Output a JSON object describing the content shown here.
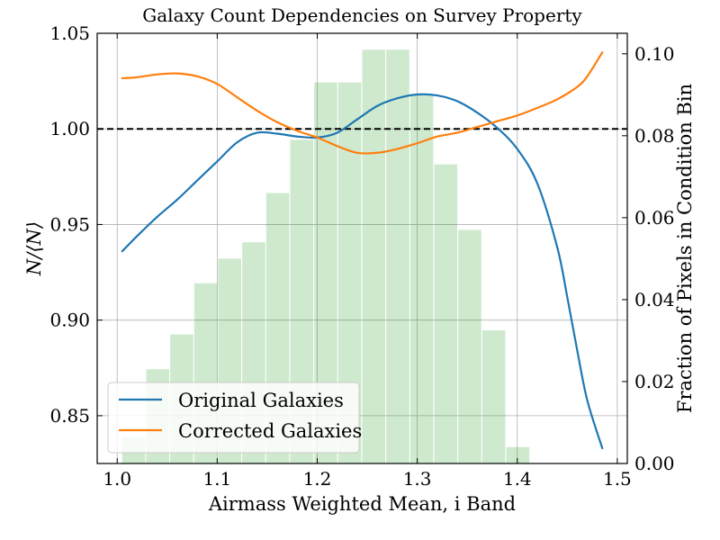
{
  "chart_data": {
    "type": "line",
    "title": "Galaxy Count Dependencies on Survey Property",
    "xlabel": "Airmass Weighted Mean, i Band",
    "ylabel": "N/⟨N⟩",
    "y2label": "Fraction of Pixels in Condition Bin",
    "xlim": [
      0.98,
      1.51
    ],
    "ylim": [
      0.825,
      1.05
    ],
    "y2lim": [
      0.0,
      0.105
    ],
    "xticks": [
      "1.0",
      "1.1",
      "1.2",
      "1.3",
      "1.4",
      "1.5"
    ],
    "yticks": [
      "0.85",
      "0.90",
      "0.95",
      "1.00",
      "1.05"
    ],
    "y2ticks": [
      "0.00",
      "0.02",
      "0.04",
      "0.06",
      "0.08",
      "0.10"
    ],
    "grid": true,
    "legend_position": "lower-left",
    "reference_line": {
      "y": 1.0,
      "style": "dashed",
      "color": "#000000"
    },
    "histogram": {
      "color": "#2ca02c",
      "bins": [
        {
          "x0": 1.005,
          "x1": 1.028,
          "value": 0.0065
        },
        {
          "x0": 1.029,
          "x1": 1.052,
          "value": 0.023
        },
        {
          "x0": 1.053,
          "x1": 1.076,
          "value": 0.0315
        },
        {
          "x0": 1.077,
          "x1": 1.1,
          "value": 0.044
        },
        {
          "x0": 1.101,
          "x1": 1.124,
          "value": 0.05
        },
        {
          "x0": 1.125,
          "x1": 1.148,
          "value": 0.054
        },
        {
          "x0": 1.149,
          "x1": 1.172,
          "value": 0.066
        },
        {
          "x0": 1.173,
          "x1": 1.196,
          "value": 0.079
        },
        {
          "x0": 1.197,
          "x1": 1.22,
          "value": 0.093
        },
        {
          "x0": 1.221,
          "x1": 1.244,
          "value": 0.093
        },
        {
          "x0": 1.245,
          "x1": 1.268,
          "value": 0.101
        },
        {
          "x0": 1.269,
          "x1": 1.292,
          "value": 0.101
        },
        {
          "x0": 1.293,
          "x1": 1.316,
          "value": 0.09
        },
        {
          "x0": 1.317,
          "x1": 1.34,
          "value": 0.073
        },
        {
          "x0": 1.341,
          "x1": 1.364,
          "value": 0.057
        },
        {
          "x0": 1.365,
          "x1": 1.388,
          "value": 0.0325
        },
        {
          "x0": 1.389,
          "x1": 1.412,
          "value": 0.004
        },
        {
          "x0": 1.413,
          "x1": 1.436,
          "value": 0.0
        },
        {
          "x0": 1.437,
          "x1": 1.46,
          "value": 0.0
        }
      ]
    },
    "series": [
      {
        "name": "Original Galaxies",
        "color": "#1f77b4",
        "x": [
          1.005,
          1.02,
          1.04,
          1.06,
          1.08,
          1.1,
          1.12,
          1.14,
          1.16,
          1.18,
          1.2,
          1.22,
          1.24,
          1.26,
          1.28,
          1.3,
          1.32,
          1.34,
          1.36,
          1.38,
          1.4,
          1.42,
          1.44,
          1.45,
          1.46,
          1.47,
          1.485
        ],
        "y": [
          0.936,
          0.944,
          0.954,
          0.963,
          0.973,
          0.983,
          0.993,
          0.998,
          0.9975,
          0.996,
          0.9955,
          0.998,
          1.005,
          1.012,
          1.016,
          1.018,
          1.0175,
          1.0145,
          1.0085,
          1.0005,
          0.9895,
          0.9715,
          0.938,
          0.912,
          0.884,
          0.858,
          0.833
        ]
      },
      {
        "name": "Corrected Galaxies",
        "color": "#ff7f0e",
        "x": [
          1.005,
          1.02,
          1.04,
          1.06,
          1.08,
          1.1,
          1.12,
          1.14,
          1.16,
          1.18,
          1.2,
          1.22,
          1.24,
          1.26,
          1.28,
          1.3,
          1.32,
          1.34,
          1.36,
          1.38,
          1.4,
          1.42,
          1.44,
          1.46,
          1.47,
          1.485
        ],
        "y": [
          1.0265,
          1.027,
          1.0285,
          1.029,
          1.0275,
          1.0235,
          1.0165,
          1.0095,
          1.0035,
          0.999,
          0.9955,
          0.991,
          0.9875,
          0.9875,
          0.9895,
          0.9925,
          0.996,
          0.998,
          1.001,
          1.004,
          1.007,
          1.011,
          1.0155,
          1.022,
          1.0275,
          1.04
        ]
      }
    ]
  }
}
